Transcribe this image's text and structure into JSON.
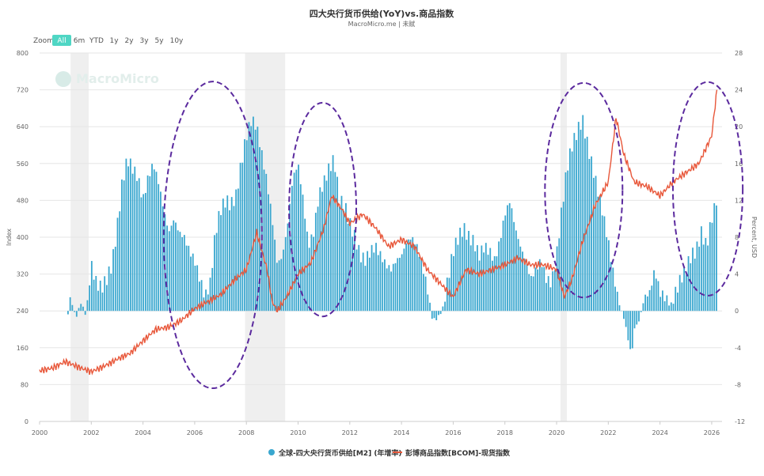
{
  "chart_data": {
    "type": "bar+line",
    "title": "四大央行货币供给(YoY)vs.商品指数",
    "subtitle": "MacroMicro.me | 未赋",
    "watermark": "MacroMicro",
    "zoom": {
      "label": "Zoom",
      "options": [
        "All",
        "6m",
        "YTD",
        "1y",
        "2y",
        "3y",
        "5y",
        "10y"
      ],
      "selected": "All"
    },
    "left_axis": {
      "label": "Index",
      "ticks": [
        0,
        80,
        160,
        240,
        320,
        400,
        480,
        560,
        640,
        720,
        800
      ],
      "range": [
        0,
        800
      ]
    },
    "right_axis": {
      "label": "Percent, USD",
      "ticks": [
        -12,
        -8,
        -4,
        0,
        4,
        8,
        12,
        16,
        20,
        24,
        28
      ],
      "range": [
        -12,
        28
      ]
    },
    "x_axis": {
      "ticks": [
        "2000",
        "2002",
        "2004",
        "2006",
        "2008",
        "2010",
        "2012",
        "2014",
        "2016",
        "2018",
        "2020",
        "2022",
        "2024",
        "2026"
      ],
      "range": [
        2000,
        2026.4
      ]
    },
    "recessions": [
      [
        2001.2,
        2001.9
      ],
      [
        2007.95,
        2009.5
      ],
      [
        2020.15,
        2020.4
      ]
    ],
    "ellipses": [
      {
        "cx": 2006.7,
        "cy": 405,
        "rx": 1.9,
        "ry": 333
      },
      {
        "cx": 2010.95,
        "cy": 460,
        "rx": 1.3,
        "ry": 232
      },
      {
        "cx": 2021.05,
        "cy": 502,
        "rx": 1.5,
        "ry": 233
      },
      {
        "cx": 2025.85,
        "cy": 505,
        "rx": 1.35,
        "ry": 232
      }
    ],
    "legend": {
      "position": "bottom",
      "items": [
        {
          "name": "全球-四大央行货币供给[M2] (年增率)",
          "color": "#3aa7cf",
          "shape": "dot"
        },
        {
          "name": "彭博商品指数[BCOM]-现货指数",
          "color": "#e8573a",
          "shape": "line"
        }
      ]
    },
    "series": [
      {
        "name": "全球-四大央行货币供给[M2] (年增率)",
        "type": "bar",
        "axis": "right",
        "color": "#3aa7cf",
        "points": [
          [
            2001.1,
            -0.3
          ],
          [
            2001.2,
            1.5
          ],
          [
            2001.4,
            -0.8
          ],
          [
            2001.6,
            0.9
          ],
          [
            2001.8,
            -0.5
          ],
          [
            2001.9,
            2.5
          ],
          [
            2002.0,
            5.0
          ],
          [
            2002.2,
            3.0
          ],
          [
            2002.4,
            2.5
          ],
          [
            2002.6,
            3.5
          ],
          [
            2002.8,
            5.0
          ],
          [
            2003.0,
            9.0
          ],
          [
            2003.2,
            14.0
          ],
          [
            2003.4,
            16.5
          ],
          [
            2003.6,
            15.5
          ],
          [
            2003.8,
            14.5
          ],
          [
            2004.0,
            12.0
          ],
          [
            2004.2,
            14.5
          ],
          [
            2004.4,
            16.0
          ],
          [
            2004.6,
            14.0
          ],
          [
            2004.8,
            11.0
          ],
          [
            2005.0,
            8.5
          ],
          [
            2005.2,
            10.0
          ],
          [
            2005.4,
            8.5
          ],
          [
            2005.6,
            8.0
          ],
          [
            2005.8,
            6.5
          ],
          [
            2006.0,
            5.5
          ],
          [
            2006.2,
            3.5
          ],
          [
            2006.4,
            1.5
          ],
          [
            2006.6,
            3.0
          ],
          [
            2006.8,
            8.5
          ],
          [
            2007.0,
            11.0
          ],
          [
            2007.2,
            12.0
          ],
          [
            2007.4,
            11.5
          ],
          [
            2007.6,
            12.5
          ],
          [
            2007.8,
            16.0
          ],
          [
            2008.0,
            19.0
          ],
          [
            2008.2,
            20.8
          ],
          [
            2008.4,
            20.0
          ],
          [
            2008.6,
            17.0
          ],
          [
            2008.8,
            14.0
          ],
          [
            2009.0,
            10.0
          ],
          [
            2009.2,
            5.0
          ],
          [
            2009.4,
            6.0
          ],
          [
            2009.6,
            9.5
          ],
          [
            2009.8,
            14.5
          ],
          [
            2010.0,
            16.0
          ],
          [
            2010.2,
            12.0
          ],
          [
            2010.4,
            7.0
          ],
          [
            2010.6,
            8.5
          ],
          [
            2010.8,
            12.5
          ],
          [
            2011.0,
            14.0
          ],
          [
            2011.2,
            15.5
          ],
          [
            2011.4,
            16.5
          ],
          [
            2011.6,
            12.0
          ],
          [
            2011.8,
            11.5
          ],
          [
            2012.0,
            9.5
          ],
          [
            2012.2,
            8.0
          ],
          [
            2012.4,
            6.0
          ],
          [
            2012.6,
            5.5
          ],
          [
            2012.8,
            6.5
          ],
          [
            2013.0,
            7.0
          ],
          [
            2013.2,
            6.0
          ],
          [
            2013.4,
            5.0
          ],
          [
            2013.6,
            4.5
          ],
          [
            2013.8,
            5.5
          ],
          [
            2014.0,
            6.0
          ],
          [
            2014.2,
            7.5
          ],
          [
            2014.4,
            8.0
          ],
          [
            2014.6,
            7.0
          ],
          [
            2014.8,
            5.0
          ],
          [
            2015.0,
            2.5
          ],
          [
            2015.2,
            -1.0
          ],
          [
            2015.4,
            -0.8
          ],
          [
            2015.6,
            0.3
          ],
          [
            2015.8,
            3.5
          ],
          [
            2016.0,
            6.5
          ],
          [
            2016.2,
            8.0
          ],
          [
            2016.4,
            9.0
          ],
          [
            2016.6,
            8.0
          ],
          [
            2016.8,
            7.5
          ],
          [
            2017.0,
            6.0
          ],
          [
            2017.2,
            7.0
          ],
          [
            2017.4,
            6.5
          ],
          [
            2017.6,
            5.5
          ],
          [
            2017.8,
            7.5
          ],
          [
            2018.0,
            10.5
          ],
          [
            2018.2,
            12.0
          ],
          [
            2018.4,
            9.0
          ],
          [
            2018.6,
            7.0
          ],
          [
            2018.8,
            5.5
          ],
          [
            2019.0,
            3.5
          ],
          [
            2019.2,
            4.5
          ],
          [
            2019.4,
            5.5
          ],
          [
            2019.6,
            3.5
          ],
          [
            2019.8,
            3.0
          ],
          [
            2020.0,
            6.0
          ],
          [
            2020.2,
            11.0
          ],
          [
            2020.4,
            15.5
          ],
          [
            2020.6,
            18.0
          ],
          [
            2020.8,
            19.5
          ],
          [
            2021.0,
            20.8
          ],
          [
            2021.2,
            18.0
          ],
          [
            2021.4,
            15.5
          ],
          [
            2021.6,
            13.0
          ],
          [
            2021.8,
            10.5
          ],
          [
            2022.0,
            7.5
          ],
          [
            2022.2,
            4.0
          ],
          [
            2022.4,
            1.0
          ],
          [
            2022.6,
            -0.8
          ],
          [
            2022.8,
            -3.5
          ],
          [
            2022.9,
            -5.0
          ],
          [
            2023.0,
            -2.0
          ],
          [
            2023.2,
            -1.0
          ],
          [
            2023.4,
            1.5
          ],
          [
            2023.6,
            2.0
          ],
          [
            2023.8,
            4.5
          ],
          [
            2024.0,
            2.0
          ],
          [
            2024.2,
            1.5
          ],
          [
            2024.4,
            0.5
          ],
          [
            2024.6,
            2.0
          ],
          [
            2024.8,
            3.5
          ],
          [
            2025.0,
            4.5
          ],
          [
            2025.2,
            6.0
          ],
          [
            2025.4,
            6.5
          ],
          [
            2025.6,
            8.5
          ],
          [
            2025.8,
            7.0
          ],
          [
            2026.0,
            10.0
          ],
          [
            2026.2,
            12.2
          ]
        ]
      },
      {
        "name": "彭博商品指数[BCOM]-现货指数",
        "type": "line",
        "axis": "left",
        "color": "#e8573a",
        "points": [
          [
            2000.0,
            110
          ],
          [
            2000.5,
            116
          ],
          [
            2001.0,
            130
          ],
          [
            2001.5,
            118
          ],
          [
            2002.0,
            108
          ],
          [
            2002.5,
            120
          ],
          [
            2003.0,
            135
          ],
          [
            2003.5,
            148
          ],
          [
            2004.0,
            175
          ],
          [
            2004.5,
            200
          ],
          [
            2005.0,
            205
          ],
          [
            2005.5,
            220
          ],
          [
            2006.0,
            245
          ],
          [
            2006.5,
            260
          ],
          [
            2007.0,
            275
          ],
          [
            2007.5,
            305
          ],
          [
            2008.0,
            330
          ],
          [
            2008.4,
            410
          ],
          [
            2008.8,
            330
          ],
          [
            2009.0,
            260
          ],
          [
            2009.2,
            240
          ],
          [
            2009.6,
            275
          ],
          [
            2010.0,
            320
          ],
          [
            2010.5,
            345
          ],
          [
            2011.0,
            420
          ],
          [
            2011.3,
            490
          ],
          [
            2011.7,
            460
          ],
          [
            2012.0,
            430
          ],
          [
            2012.5,
            450
          ],
          [
            2013.0,
            420
          ],
          [
            2013.5,
            380
          ],
          [
            2014.0,
            395
          ],
          [
            2014.5,
            380
          ],
          [
            2015.0,
            330
          ],
          [
            2015.5,
            300
          ],
          [
            2016.0,
            270
          ],
          [
            2016.5,
            330
          ],
          [
            2017.0,
            320
          ],
          [
            2017.5,
            330
          ],
          [
            2018.0,
            340
          ],
          [
            2018.5,
            355
          ],
          [
            2019.0,
            340
          ],
          [
            2019.5,
            340
          ],
          [
            2020.0,
            330
          ],
          [
            2020.3,
            270
          ],
          [
            2020.6,
            310
          ],
          [
            2021.0,
            390
          ],
          [
            2021.5,
            470
          ],
          [
            2022.0,
            520
          ],
          [
            2022.3,
            660
          ],
          [
            2022.6,
            580
          ],
          [
            2023.0,
            520
          ],
          [
            2023.5,
            510
          ],
          [
            2024.0,
            490
          ],
          [
            2024.5,
            520
          ],
          [
            2025.0,
            540
          ],
          [
            2025.5,
            560
          ],
          [
            2026.0,
            620
          ],
          [
            2026.2,
            720
          ]
        ]
      }
    ]
  }
}
